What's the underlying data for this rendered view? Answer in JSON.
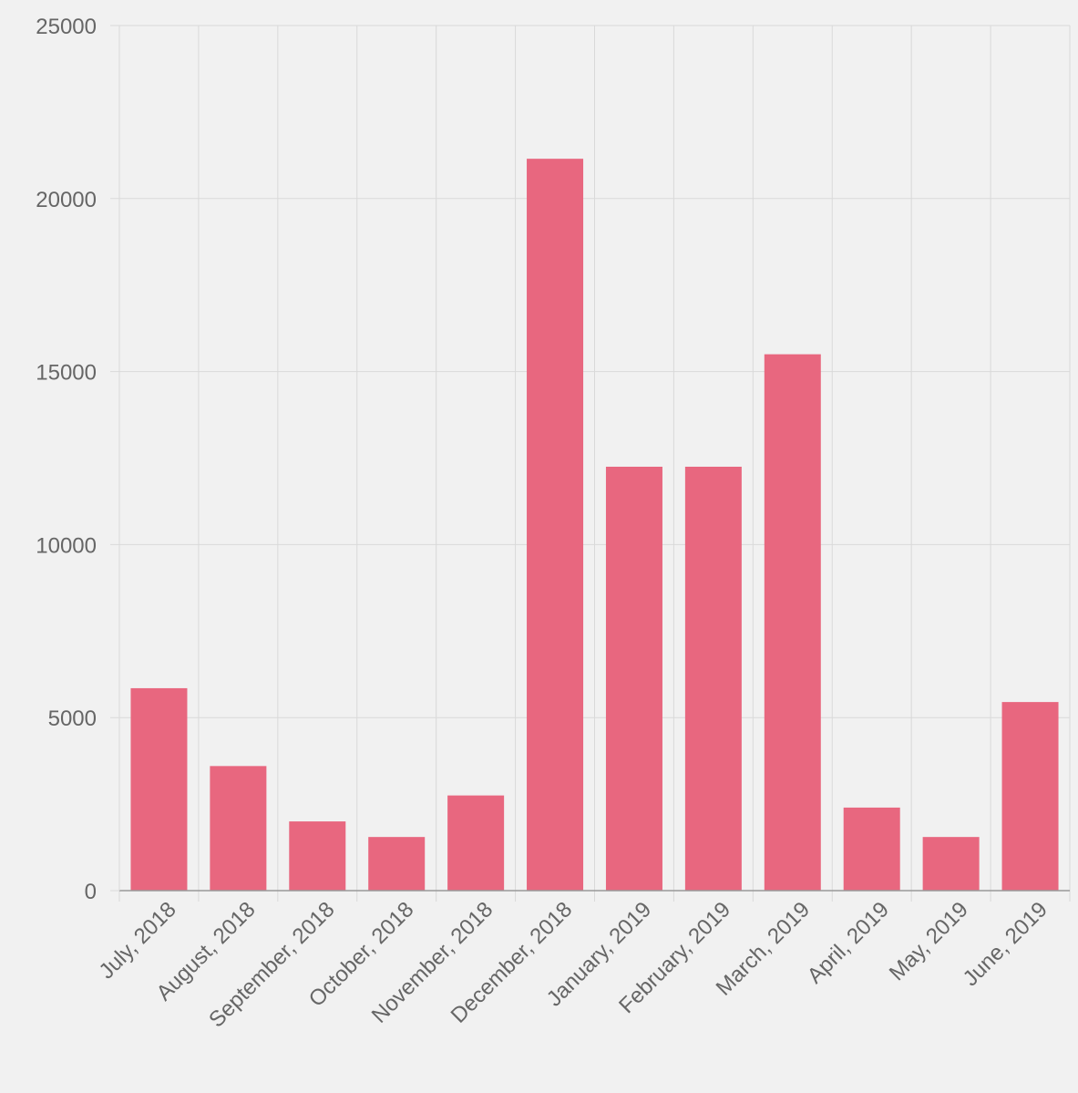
{
  "chart_data": {
    "type": "bar",
    "title": "",
    "xlabel": "",
    "ylabel": "",
    "categories": [
      "July, 2018",
      "August, 2018",
      "September, 2018",
      "October, 2018",
      "November, 2018",
      "December, 2018",
      "January, 2019",
      "February, 2019",
      "March, 2019",
      "April, 2019",
      "May, 2019",
      "June, 2019"
    ],
    "values": [
      5850,
      3600,
      2000,
      1550,
      2750,
      21150,
      12250,
      12250,
      15500,
      2400,
      1550,
      5450
    ],
    "ylim": [
      0,
      25000
    ],
    "yticks": [
      "0",
      "5000",
      "10000",
      "15000",
      "20000",
      "25000"
    ],
    "grid": true,
    "legend": "none",
    "colors": {
      "bar": "#e8677f",
      "grid": "#d9d9d9",
      "axis": "#999999",
      "text": "#666666",
      "background": "#f1f1f1"
    }
  }
}
